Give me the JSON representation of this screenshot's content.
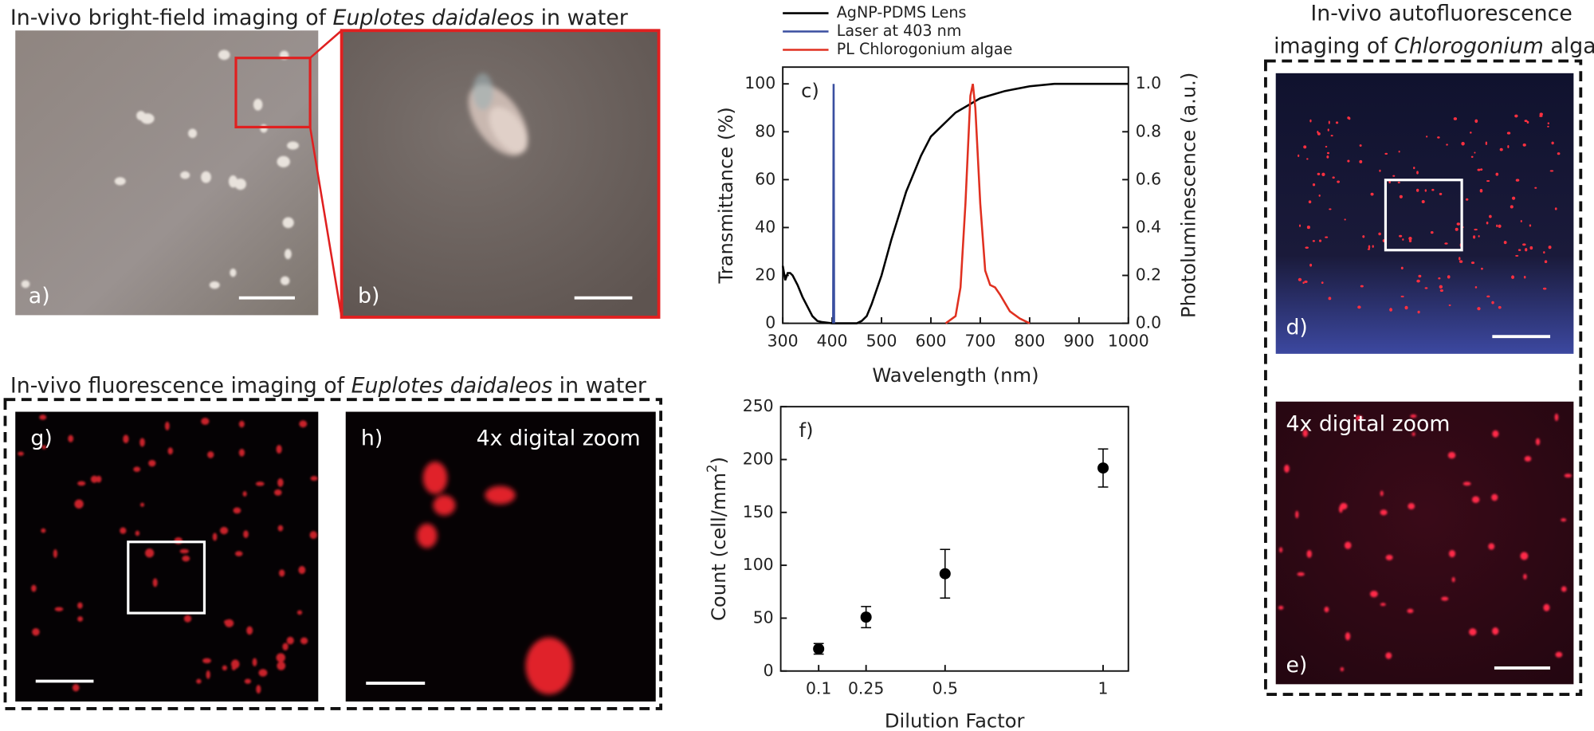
{
  "panels": {
    "bright_field_title": [
      "In-vivo bright-field imaging of ",
      "Euplotes daidaleos",
      " in water"
    ],
    "fluorescence_title": [
      "In-vivo fluorescence imaging of ",
      "Euplotes daidaleos",
      " in water"
    ],
    "autofluorescence_title": {
      "line1": "In-vivo autofluorescence",
      "line2": [
        "imaging of ",
        "Chlorogonium",
        " algae"
      ]
    },
    "a": {
      "label": "a)"
    },
    "b": {
      "label": "b)"
    },
    "d": {
      "label": "d)"
    },
    "e": {
      "label": "e)",
      "zoom": "4x digital zoom"
    },
    "g": {
      "label": "g)"
    },
    "h": {
      "label": "h)",
      "zoom": "4x digital zoom"
    }
  },
  "chart_data": [
    {
      "type": "line",
      "label": "c)",
      "xlabel": "Wavelength (nm)",
      "ylabel": "Transmittance (%)",
      "y2label": "Photoluminescence (a.u.)",
      "xlim": [
        300,
        1000
      ],
      "xticks": [
        300,
        400,
        500,
        600,
        700,
        800,
        900,
        1000
      ],
      "ylim": [
        0,
        107
      ],
      "yticks": [
        0,
        20,
        40,
        60,
        80,
        100
      ],
      "y2lim": [
        0,
        1.07
      ],
      "y2ticks": [
        {
          "value": 0,
          "label": "0.0"
        },
        0.2,
        0.4,
        0.6,
        0.8,
        {
          "value": 1,
          "label": "1.0"
        }
      ],
      "series": [
        {
          "name": "AgNP-PDMS Lens",
          "color": "#000000",
          "x": [
            300,
            305,
            310,
            315,
            320,
            330,
            340,
            350,
            360,
            370,
            380,
            400,
            450,
            460,
            470,
            480,
            500,
            520,
            550,
            580,
            600,
            650,
            700,
            750,
            800,
            850,
            900,
            1000
          ],
          "values": [
            24,
            18,
            21,
            21,
            20,
            16,
            11,
            7,
            3,
            1,
            0.5,
            0,
            0,
            1,
            3,
            8,
            20,
            35,
            55,
            70,
            78,
            88,
            94,
            97,
            99,
            100,
            100,
            100
          ]
        },
        {
          "name": "Laser at 403 nm",
          "color": "#3a4fa0",
          "axis": "y2",
          "x": [
            402,
            403,
            404
          ],
          "values": [
            0,
            1,
            0
          ]
        },
        {
          "name": "PL Chlorogonium algae",
          "color": "#e03020",
          "axis": "y2",
          "x": [
            630,
            650,
            660,
            670,
            680,
            685,
            690,
            700,
            710,
            720,
            730,
            740,
            760,
            780,
            800
          ],
          "values": [
            0,
            0.03,
            0.15,
            0.5,
            0.95,
            1.0,
            0.9,
            0.5,
            0.22,
            0.16,
            0.15,
            0.12,
            0.05,
            0.02,
            0
          ]
        }
      ]
    },
    {
      "type": "scatter",
      "label": "f)",
      "xlabel": "Dilution Factor",
      "ylabel": {
        "text": "Count (cell/mm",
        "superscript": "2",
        "end": ")"
      },
      "xlim": [
        -0.02,
        1.08
      ],
      "xticks": [
        0.1,
        0.25,
        0.5,
        1
      ],
      "ylim": [
        0,
        250
      ],
      "yticks": [
        0,
        50,
        100,
        150,
        200,
        250
      ],
      "x": [
        0.1,
        0.25,
        0.5,
        1
      ],
      "series": [
        {
          "color": "#000000",
          "values": [
            21,
            51,
            92,
            192
          ],
          "errors": [
            5,
            10,
            23,
            18
          ]
        }
      ]
    }
  ]
}
